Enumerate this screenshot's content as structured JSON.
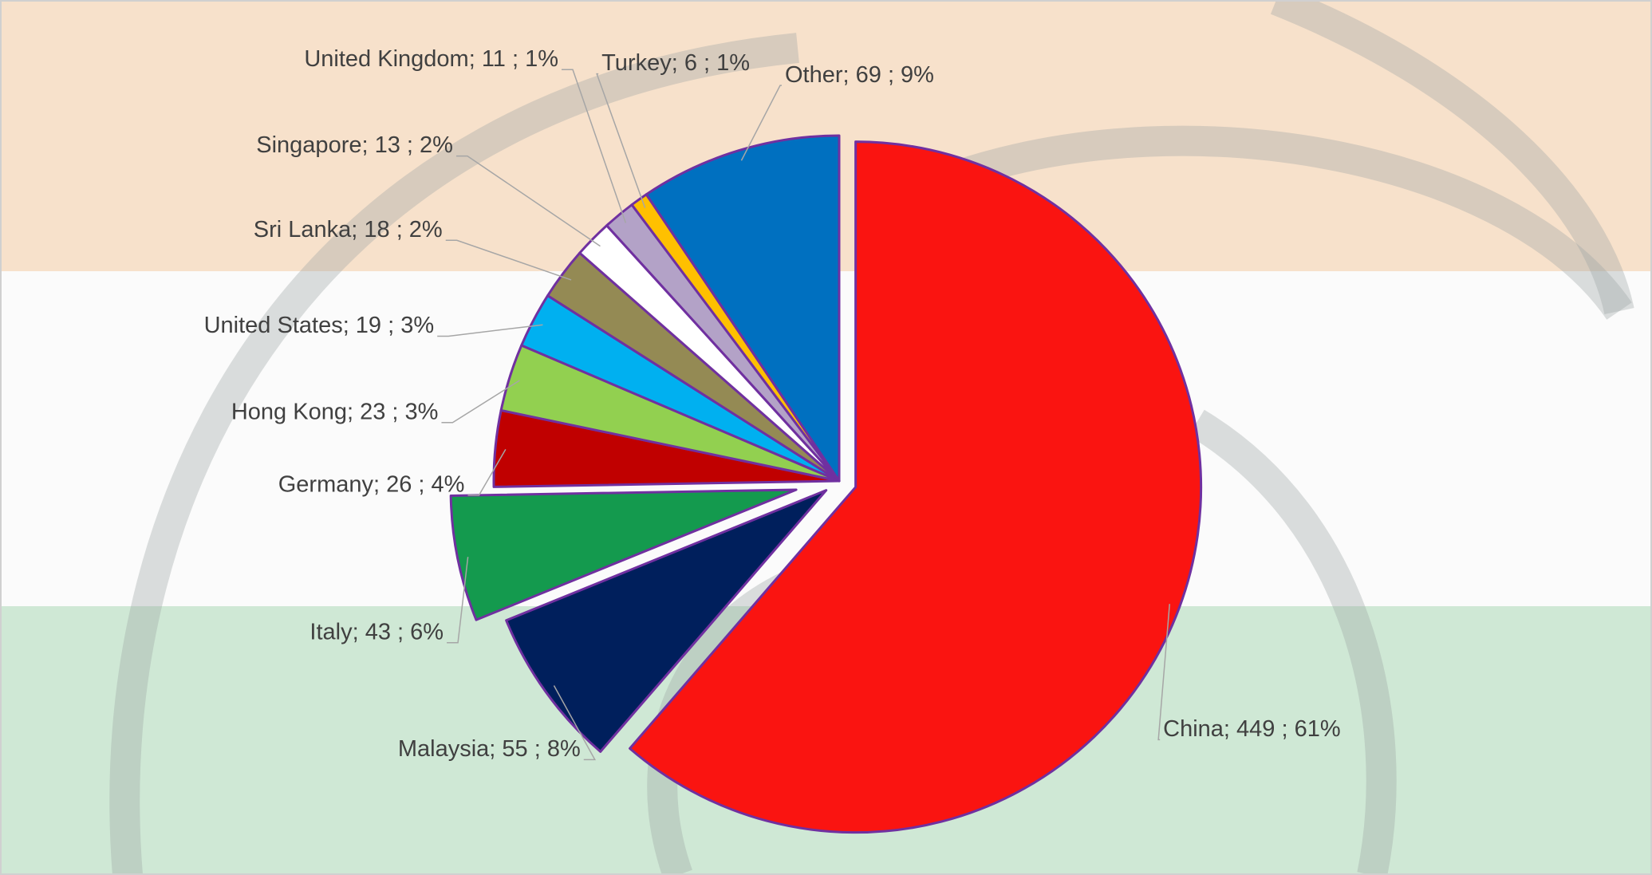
{
  "chart_data": {
    "type": "pie",
    "values": [
      449,
      55,
      43,
      26,
      23,
      19,
      18,
      13,
      11,
      6,
      69
    ],
    "value_labels": [
      "China;  449 ; 61%",
      "Malaysia;  55 ; 8%",
      "Italy;  43 ; 6%",
      "Germany;  26 ; 4%",
      "Hong Kong;  23 ; 3%",
      "United States;  19 ; 3%",
      "Sri Lanka;  18 ; 2%",
      "Singapore;  13 ; 2%",
      "United Kingdom;  11 ; 1%",
      "Turkey;  6 ; 1%",
      "Other;  69 ; 9%"
    ],
    "colors": [
      "#fa1411",
      "#001f5c",
      "#149a4e",
      "#c00000",
      "#92d050",
      "#00b0f0",
      "#948a54",
      "#ffffff",
      "#b3a2c7",
      "#ffc000",
      "#0070c0"
    ]
  }
}
